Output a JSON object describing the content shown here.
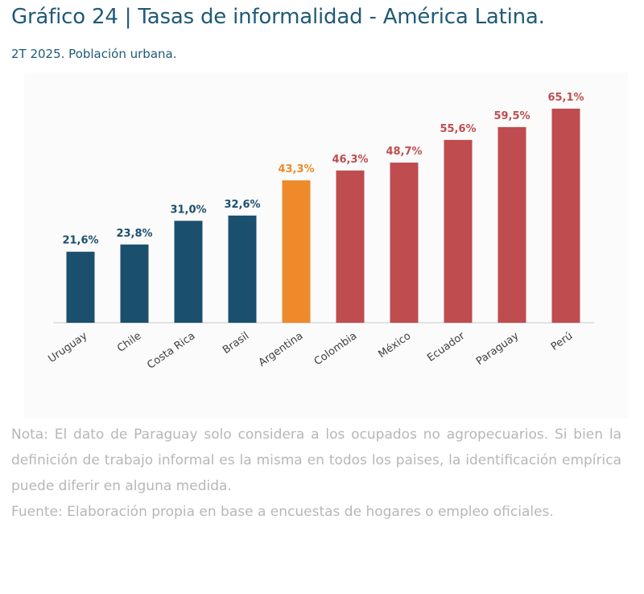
{
  "header": {
    "title": "Gráfico 24 | Tasas de informalidad - América Latina.",
    "subtitle": "2T 2025. Población urbana."
  },
  "chart_data": {
    "type": "bar",
    "categories": [
      "Uruguay",
      "Chile",
      "Costa Rica",
      "Brasil",
      "Argentina",
      "Colombia",
      "México",
      "Ecuador",
      "Paraguay",
      "Perú"
    ],
    "values": [
      21.6,
      23.8,
      31.0,
      32.6,
      43.3,
      46.3,
      48.7,
      55.6,
      59.5,
      65.1
    ],
    "value_labels": [
      "21,6%",
      "23,8%",
      "31,0%",
      "32,6%",
      "43,3%",
      "46,3%",
      "48,7%",
      "55,6%",
      "59,5%",
      "65,1%"
    ],
    "colors": [
      "#1b4f6e",
      "#1b4f6e",
      "#1b4f6e",
      "#1b4f6e",
      "#ee8a2a",
      "#bf4c4f",
      "#bf4c4f",
      "#bf4c4f",
      "#bf4c4f",
      "#bf4c4f"
    ],
    "ylim": [
      0,
      70
    ],
    "grid": false,
    "legend": "none"
  },
  "notes": {
    "nota": "Nota: El dato de Paraguay solo considera a los ocupados no agropecuarios. Si bien la definición de trabajo informal es la misma en todos los paises, la identificación empírica puede diferir en alguna medida.",
    "fuente": "Fuente: Elaboración propia en base a encuestas de hogares o empleo oficiales."
  }
}
